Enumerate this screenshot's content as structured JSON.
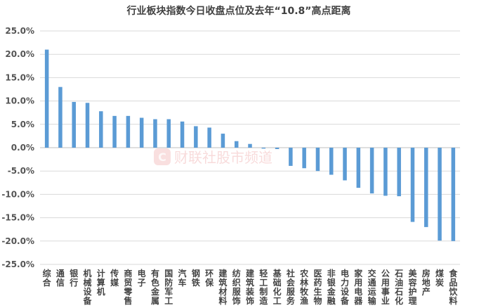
{
  "chart_data": {
    "type": "bar",
    "title": "行业板块指数今日收盘点位及去年“10.8”高点距离",
    "xlabel": "",
    "ylabel": "",
    "ylim": [
      -25,
      25
    ],
    "y_ticks": [
      "25.0%",
      "20.0%",
      "15.0%",
      "10.0%",
      "5.0%",
      "0.0%",
      "-5.0%",
      "-10.0%",
      "-15.0%",
      "-20.0%",
      "-25.0%"
    ],
    "grid": true,
    "legend": "none",
    "categories": [
      "综合",
      "通信",
      "银行",
      "机械设备",
      "计算机",
      "传媒",
      "商贸零售",
      "电子",
      "有色金属",
      "国防军工",
      "汽车",
      "钢铁",
      "环保",
      "建筑材料",
      "纺织服饰",
      "建筑装饰",
      "轻工制造",
      "基础化工",
      "社会服务",
      "农林牧渔",
      "医药生物",
      "非银金融",
      "电力设备",
      "家用电器",
      "交通运输",
      "公用事业",
      "石油石化",
      "美容护理",
      "房地产",
      "煤炭",
      "食品饮料"
    ],
    "values": [
      21.0,
      13.0,
      9.8,
      9.6,
      7.8,
      6.8,
      6.8,
      6.4,
      6.1,
      6.1,
      5.6,
      4.6,
      4.3,
      3.0,
      1.4,
      0.8,
      -0.2,
      -0.3,
      -3.9,
      -4.4,
      -5.0,
      -5.8,
      -7.0,
      -8.6,
      -9.8,
      -10.3,
      -10.4,
      -15.9,
      -17.0,
      -19.9,
      -20.0
    ],
    "colors": {
      "bar": "#5b9bd5",
      "grid": "#d9d9d9"
    }
  },
  "watermark": {
    "text": "财联社股市频道",
    "icon": "C"
  }
}
